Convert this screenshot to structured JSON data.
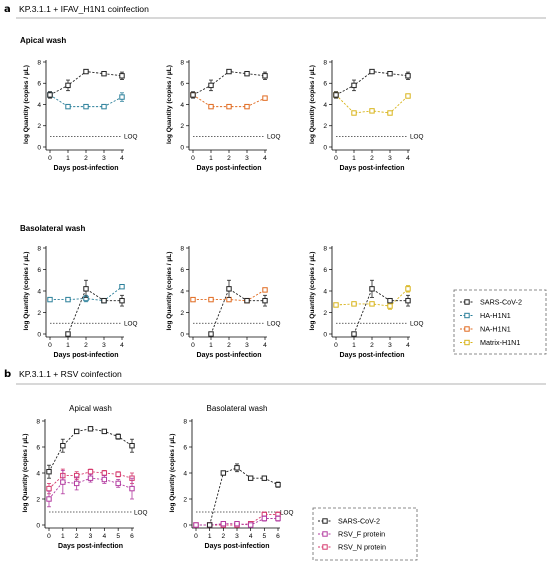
{
  "figure": {
    "sections": [
      {
        "letter": "a",
        "title": "KP.3.1.1 + IFAV_H1N1 coinfection"
      },
      {
        "letter": "b",
        "title": "KP.3.1.1 + RSV coinfection"
      }
    ],
    "block_titles": [
      "Apical wash",
      "Basolateral wash"
    ],
    "loq_label": "LOQ",
    "legend_a": [
      {
        "label": "SARS-CoV-2",
        "color": "#222222"
      },
      {
        "label": "HA-H1N1",
        "color": "#2a7f9a"
      },
      {
        "label": "NA-H1N1",
        "color": "#e06a1f"
      },
      {
        "label": "Matrix-H1N1",
        "color": "#d8b41a"
      }
    ],
    "legend_b": [
      {
        "label": "SARS-CoV-2",
        "color": "#222222"
      },
      {
        "label": "RSV_F protein",
        "color": "#b23aa0"
      },
      {
        "label": "RSV_N protein",
        "color": "#d63a6e"
      }
    ]
  },
  "chart_data": [
    {
      "type": "line",
      "title": "",
      "xlabel": "Days post-infection",
      "ylabel": "log Quantity (copies / µL)",
      "x": [
        0,
        1,
        2,
        3,
        4
      ],
      "xlim": [
        0,
        4
      ],
      "ylim": [
        0,
        8
      ],
      "yticks": [
        0,
        2,
        4,
        6,
        8
      ],
      "loq": 1,
      "series": [
        {
          "name": "SARS-CoV-2",
          "color": "#222222",
          "values": [
            4.9,
            5.8,
            7.1,
            6.9,
            6.7
          ],
          "err": [
            0.3,
            0.5,
            0.15,
            0.15,
            0.35
          ]
        },
        {
          "name": "HA-H1N1",
          "color": "#2a7f9a",
          "values": [
            4.9,
            3.8,
            3.8,
            3.8,
            4.7
          ],
          "err": [
            0.3,
            0.1,
            0.1,
            0.1,
            0.4
          ]
        }
      ]
    },
    {
      "type": "line",
      "title": "",
      "xlabel": "Days post-infection",
      "ylabel": "log Quantity (copies / µL)",
      "x": [
        0,
        1,
        2,
        3,
        4
      ],
      "xlim": [
        0,
        4
      ],
      "ylim": [
        0,
        8
      ],
      "yticks": [
        0,
        2,
        4,
        6,
        8
      ],
      "loq": 1,
      "series": [
        {
          "name": "SARS-CoV-2",
          "color": "#222222",
          "values": [
            4.9,
            5.8,
            7.1,
            6.9,
            6.7
          ],
          "err": [
            0.3,
            0.5,
            0.15,
            0.15,
            0.35
          ]
        },
        {
          "name": "NA-H1N1",
          "color": "#e06a1f",
          "values": [
            4.9,
            3.8,
            3.8,
            3.8,
            4.6
          ],
          "err": [
            0.2,
            0.1,
            0.1,
            0.1,
            0.15
          ]
        }
      ]
    },
    {
      "type": "line",
      "title": "",
      "xlabel": "Days post-infection",
      "ylabel": "log Quantity (copies / µL)",
      "x": [
        0,
        1,
        2,
        3,
        4
      ],
      "xlim": [
        0,
        4
      ],
      "ylim": [
        0,
        8
      ],
      "yticks": [
        0,
        2,
        4,
        6,
        8
      ],
      "loq": 1,
      "series": [
        {
          "name": "SARS-CoV-2",
          "color": "#222222",
          "values": [
            4.9,
            5.8,
            7.1,
            6.9,
            6.7
          ],
          "err": [
            0.3,
            0.5,
            0.15,
            0.15,
            0.35
          ]
        },
        {
          "name": "Matrix-H1N1",
          "color": "#d8b41a",
          "values": [
            4.9,
            3.2,
            3.4,
            3.2,
            4.8
          ],
          "err": [
            0.3,
            0.15,
            0.1,
            0.1,
            0.1
          ]
        }
      ]
    },
    {
      "type": "line",
      "title": "",
      "xlabel": "Days post-infection",
      "ylabel": "log Quantity (copies / µL)",
      "x": [
        0,
        1,
        2,
        3,
        4
      ],
      "xlim": [
        0,
        4
      ],
      "ylim": [
        0,
        8
      ],
      "yticks": [
        0,
        2,
        4,
        6,
        8
      ],
      "loq": 1,
      "series": [
        {
          "name": "SARS-CoV-2",
          "color": "#222222",
          "values": [
            null,
            0,
            4.2,
            3.1,
            3.1
          ],
          "err": [
            0,
            0,
            0.8,
            0.1,
            0.5
          ]
        },
        {
          "name": "HA-H1N1",
          "color": "#2a7f9a",
          "values": [
            3.2,
            3.2,
            3.3,
            3.1,
            4.4
          ],
          "err": [
            0.1,
            0.1,
            0.3,
            0.1,
            0.15
          ]
        }
      ]
    },
    {
      "type": "line",
      "title": "",
      "xlabel": "Days post-infection",
      "ylabel": "log Quantity (copies / µL)",
      "x": [
        0,
        1,
        2,
        3,
        4
      ],
      "xlim": [
        0,
        4
      ],
      "ylim": [
        0,
        8
      ],
      "yticks": [
        0,
        2,
        4,
        6,
        8
      ],
      "loq": 1,
      "series": [
        {
          "name": "SARS-CoV-2",
          "color": "#222222",
          "values": [
            null,
            0,
            4.2,
            3.1,
            3.1
          ],
          "err": [
            0,
            0,
            0.8,
            0.1,
            0.5
          ]
        },
        {
          "name": "NA-H1N1",
          "color": "#e06a1f",
          "values": [
            3.2,
            3.2,
            3.2,
            3.1,
            4.1
          ],
          "err": [
            0.1,
            0.1,
            0.1,
            0.1,
            0.15
          ]
        }
      ]
    },
    {
      "type": "line",
      "title": "",
      "xlabel": "Days post-infection",
      "ylabel": "log Quantity (copies / µL)",
      "x": [
        0,
        1,
        2,
        3,
        4
      ],
      "xlim": [
        0,
        4
      ],
      "ylim": [
        0,
        8
      ],
      "yticks": [
        0,
        2,
        4,
        6,
        8
      ],
      "loq": 1,
      "series": [
        {
          "name": "SARS-CoV-2",
          "color": "#222222",
          "values": [
            null,
            0,
            4.2,
            3.1,
            3.1
          ],
          "err": [
            0,
            0,
            0.8,
            0.1,
            0.5
          ]
        },
        {
          "name": "Matrix-H1N1",
          "color": "#d8b41a",
          "values": [
            2.7,
            2.8,
            2.8,
            2.6,
            4.2
          ],
          "err": [
            0.1,
            0.1,
            0.1,
            0.3,
            0.3
          ]
        }
      ]
    },
    {
      "type": "line",
      "title": "Apical wash",
      "xlabel": "Days post-infection",
      "ylabel": "log Quantity (copies / µL)",
      "x": [
        0,
        1,
        2,
        3,
        4,
        5,
        6
      ],
      "xlim": [
        0,
        6
      ],
      "ylim": [
        0,
        8
      ],
      "yticks": [
        0,
        2,
        4,
        6,
        8
      ],
      "loq": 1,
      "series": [
        {
          "name": "SARS-CoV-2",
          "color": "#222222",
          "values": [
            4.1,
            6.1,
            7.2,
            7.4,
            7.2,
            6.8,
            6.1
          ],
          "err": [
            0.5,
            0.5,
            0.1,
            0.1,
            0.15,
            0.2,
            0.5
          ]
        },
        {
          "name": "RSV_F protein",
          "color": "#b23aa0",
          "values": [
            2.0,
            3.3,
            3.2,
            3.6,
            3.5,
            3.2,
            2.8
          ],
          "err": [
            0.6,
            0.9,
            0.5,
            0.3,
            0.3,
            0.3,
            0.8
          ]
        },
        {
          "name": "RSV_N protein",
          "color": "#d63a6e",
          "values": [
            2.8,
            3.8,
            3.8,
            4.1,
            4.0,
            3.9,
            3.6
          ],
          "err": [
            0.4,
            0.5,
            0.3,
            0.2,
            0.2,
            0.2,
            0.4
          ]
        }
      ]
    },
    {
      "type": "line",
      "title": "Basolateral wash",
      "xlabel": "Days post-infection",
      "ylabel": "log Quantity (copies / µL)",
      "x": [
        0,
        1,
        2,
        3,
        4,
        5,
        6
      ],
      "xlim": [
        0,
        6
      ],
      "ylim": [
        0,
        8
      ],
      "yticks": [
        0,
        2,
        4,
        6,
        8
      ],
      "loq": 1,
      "series": [
        {
          "name": "SARS-CoV-2",
          "color": "#222222",
          "values": [
            null,
            0,
            4.0,
            4.4,
            3.6,
            3.6,
            3.1
          ],
          "err": [
            0,
            0,
            0.1,
            0.3,
            0.1,
            0.1,
            0.2
          ]
        },
        {
          "name": "RSV_F protein",
          "color": "#b23aa0",
          "values": [
            0,
            0,
            0.1,
            0.1,
            0,
            0.5,
            0.5
          ],
          "err": [
            0,
            0,
            0.1,
            0.1,
            0,
            0.2,
            0.2
          ]
        },
        {
          "name": "RSV_N protein",
          "color": "#d63a6e",
          "values": [
            0,
            0,
            0,
            0,
            0.1,
            0.8,
            0.8
          ],
          "err": [
            0,
            0,
            0,
            0,
            0.1,
            0.2,
            0.2
          ]
        }
      ]
    }
  ]
}
